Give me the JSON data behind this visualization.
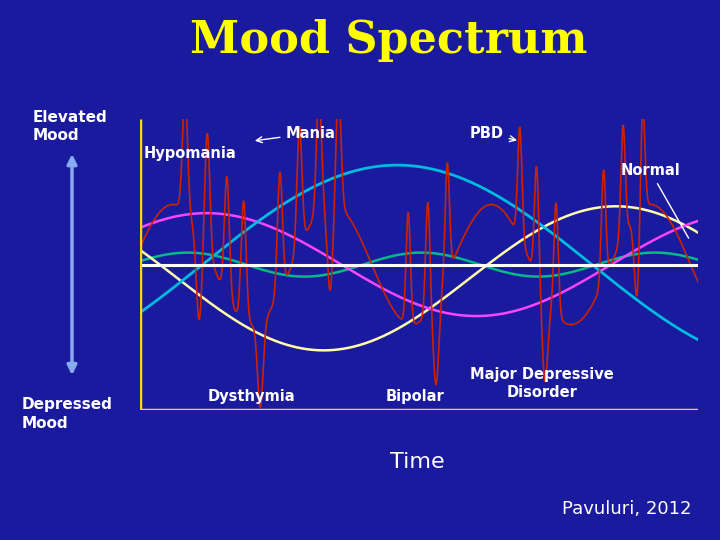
{
  "title": "Mood Spectrum",
  "title_color": "#FFFF00",
  "title_fontsize": 32,
  "bg_color": "#1a1a9e",
  "axis_color": "#FFD700",
  "citation": "Pavuluri, 2012",
  "citation_color": "white",
  "citation_fontsize": 13,
  "xlabel": "Time",
  "xlabel_color": "white",
  "xlabel_fontsize": 16,
  "arrow_color": "#88AAEE",
  "white_line_color": "white",
  "curves": {
    "mania_color": "#CC2200",
    "hypomania_color": "#FF44FF",
    "normal_color": "#00BB88",
    "dysthymia_color": "#FFFFAA",
    "bipolar_color": "#00BBDD"
  },
  "labels": {
    "elevated_mood": "Elevated\nMood",
    "depressed_mood": "Depressed\nMood",
    "mania": "Mania",
    "pbd": "PBD",
    "hypomania": "Hypomania",
    "normal": "Normal",
    "dysthymia": "Dysthymia",
    "bipolar": "Bipolar",
    "major_dep": "Major Depressive\nDisorder"
  }
}
